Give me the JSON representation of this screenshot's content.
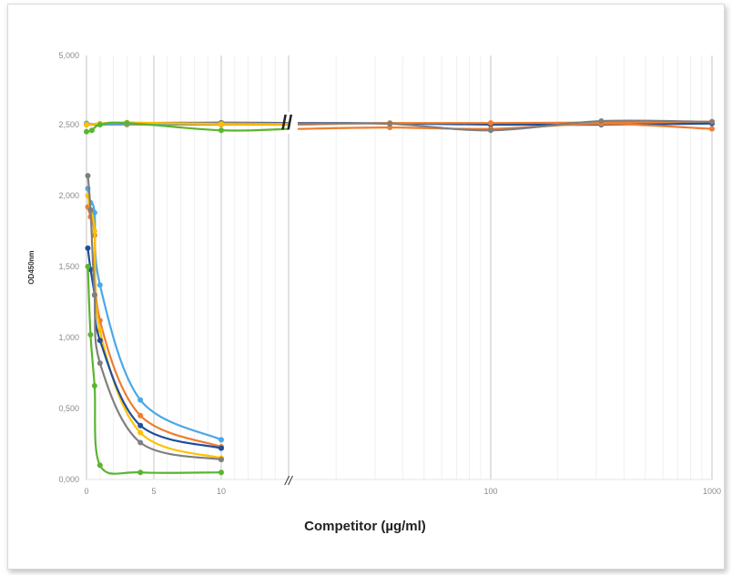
{
  "chart_data": {
    "type": "line",
    "xlabel": "Competitor (µg/ml)",
    "ylabel": "OD450nm",
    "ylim": [
      0,
      5
    ],
    "y_ticks": [
      "0,000",
      "0,500",
      "1,000",
      "1,500",
      "2,000",
      "2,500",
      "5,000"
    ],
    "x_ticks_left": [
      "0",
      "5",
      "10"
    ],
    "x_ticks_right": [
      "100",
      "1000"
    ],
    "axis_break_label": "//",
    "x_scale": "linear (0–15) then log (15–1000) with axis break",
    "grid": true,
    "legend": "none",
    "series": [
      {
        "color": "#1f4e9c",
        "group": "control",
        "x": [
          0,
          1,
          10,
          15,
          35,
          100,
          316,
          1000
        ],
        "y": [
          2.5,
          2.52,
          2.57,
          2.56,
          2.55,
          2.5,
          2.5,
          2.54
        ]
      },
      {
        "color": "#ed7d31",
        "group": "control",
        "x": [
          0,
          3,
          10,
          15,
          35,
          100,
          316,
          1000
        ],
        "y": [
          2.5,
          2.5,
          2.5,
          2.5,
          2.56,
          2.56,
          2.58,
          2.61
        ]
      },
      {
        "color": "#ed7d31",
        "group": "control",
        "x": [
          15,
          35,
          100,
          316,
          1000
        ],
        "y": [
          2.47,
          2.48,
          2.47,
          2.53,
          2.47
        ]
      },
      {
        "color": "#7f7f7f",
        "group": "control",
        "x": [
          0,
          1,
          3,
          10,
          15,
          35,
          100,
          316,
          1000
        ],
        "y": [
          2.52,
          2.53,
          2.56,
          2.57,
          2.54,
          2.53,
          2.46,
          2.63,
          2.6
        ]
      },
      {
        "color": "#4aa8e6",
        "group": "control",
        "x": [
          0,
          1,
          3,
          10,
          15
        ],
        "y": [
          2.55,
          2.5,
          2.53,
          2.52,
          2.52
        ]
      },
      {
        "color": "#ffc000",
        "group": "control",
        "x": [
          0,
          1,
          3,
          10,
          15
        ],
        "y": [
          2.5,
          2.54,
          2.58,
          2.52,
          2.52
        ]
      },
      {
        "color": "#5ab52e",
        "group": "control",
        "x": [
          0,
          0.4,
          1,
          3,
          10,
          15
        ],
        "y": [
          2.45,
          2.46,
          2.5,
          2.56,
          2.46,
          2.47
        ]
      },
      {
        "color": "#4aa8e6",
        "group": "competition",
        "x": [
          0.1,
          0.3,
          0.6,
          1,
          4,
          10
        ],
        "y": [
          2.05,
          1.95,
          1.88,
          1.37,
          0.56,
          0.28
        ]
      },
      {
        "color": "#ed7d31",
        "group": "competition",
        "x": [
          0.1,
          0.3,
          0.6,
          1,
          4,
          10
        ],
        "y": [
          1.92,
          1.85,
          1.72,
          1.12,
          0.45,
          0.23
        ]
      },
      {
        "color": "#ffc000",
        "group": "competition",
        "x": [
          0.1,
          0.3,
          0.6,
          1,
          4,
          10
        ],
        "y": [
          2.0,
          1.9,
          1.75,
          1.05,
          0.33,
          0.15
        ]
      },
      {
        "color": "#1f4e9c",
        "group": "competition",
        "x": [
          0.1,
          0.3,
          0.6,
          1,
          4,
          10
        ],
        "y": [
          1.63,
          1.48,
          1.3,
          0.98,
          0.38,
          0.22
        ]
      },
      {
        "color": "#7f7f7f",
        "group": "competition",
        "x": [
          0.1,
          0.3,
          0.6,
          1,
          4,
          10
        ],
        "y": [
          2.14,
          1.9,
          1.3,
          0.82,
          0.26,
          0.14
        ]
      },
      {
        "color": "#5ab52e",
        "group": "competition",
        "x": [
          0.1,
          0.3,
          0.6,
          1,
          4,
          10
        ],
        "y": [
          1.5,
          1.02,
          0.66,
          0.1,
          0.05,
          0.05
        ]
      }
    ]
  }
}
